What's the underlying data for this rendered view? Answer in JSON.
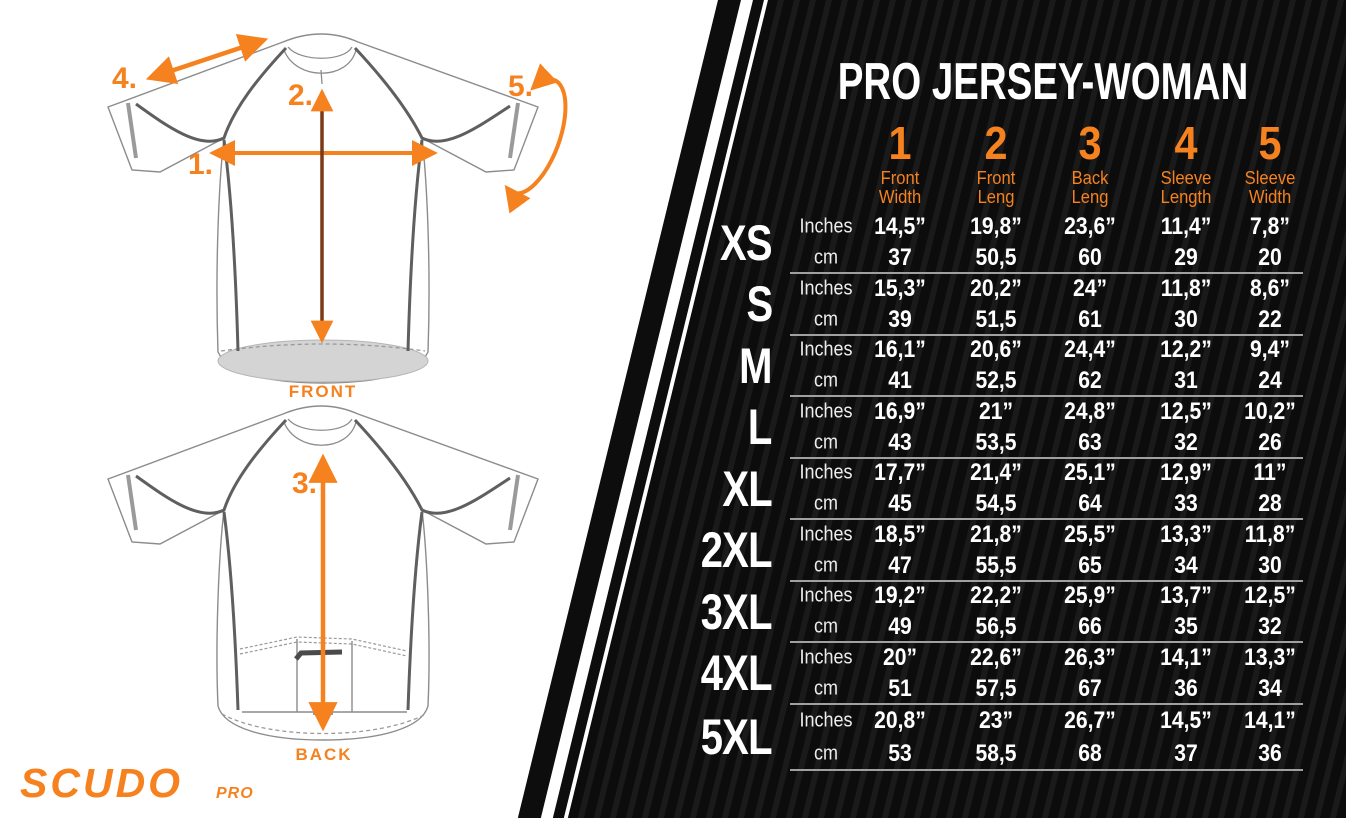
{
  "brand": {
    "name": "SCUDO",
    "sub": "PRO"
  },
  "diagram": {
    "front_caption": "FRONT",
    "back_caption": "BACK",
    "markers": {
      "m1": "1.",
      "m2": "2.",
      "m3": "3.",
      "m4": "4.",
      "m5": "5."
    }
  },
  "colors": {
    "accent_orange": "#F5821F",
    "panel_black": "#0d0d0d",
    "panel_stripe": "#1a1a1a",
    "measure_line_dark": "#7b3917",
    "separator_gray": "#a0a0a0",
    "hem_gray": "#d4d4d4"
  },
  "chart_data": {
    "type": "table",
    "title": "PRO JERSEY-WOMAN",
    "unit_labels": [
      "Inches",
      "cm"
    ],
    "columns": [
      {
        "num": "1",
        "label": [
          "Front",
          "Width"
        ]
      },
      {
        "num": "2",
        "label": [
          "Front",
          "Leng"
        ]
      },
      {
        "num": "3",
        "label": [
          "Back",
          "Leng"
        ]
      },
      {
        "num": "4",
        "label": [
          "Sleeve",
          "Length"
        ]
      },
      {
        "num": "5",
        "label": [
          "Sleeve",
          "Width"
        ]
      }
    ],
    "rows": [
      {
        "size": "XS",
        "inches": [
          "14,5”",
          "19,8”",
          "23,6”",
          "11,4”",
          "7,8”"
        ],
        "cm": [
          "37",
          "50,5",
          "60",
          "29",
          "20"
        ]
      },
      {
        "size": "S",
        "inches": [
          "15,3”",
          "20,2”",
          "24”",
          "11,8”",
          "8,6”"
        ],
        "cm": [
          "39",
          "51,5",
          "61",
          "30",
          "22"
        ]
      },
      {
        "size": "M",
        "inches": [
          "16,1”",
          "20,6”",
          "24,4”",
          "12,2”",
          "9,4”"
        ],
        "cm": [
          "41",
          "52,5",
          "62",
          "31",
          "24"
        ]
      },
      {
        "size": "L",
        "inches": [
          "16,9”",
          "21”",
          "24,8”",
          "12,5”",
          "10,2”"
        ],
        "cm": [
          "43",
          "53,5",
          "63",
          "32",
          "26"
        ]
      },
      {
        "size": "XL",
        "inches": [
          "17,7”",
          "21,4”",
          "25,1”",
          "12,9”",
          "11”"
        ],
        "cm": [
          "45",
          "54,5",
          "64",
          "33",
          "28"
        ]
      },
      {
        "size": "2XL",
        "inches": [
          "18,5”",
          "21,8”",
          "25,5”",
          "13,3”",
          "11,8”"
        ],
        "cm": [
          "47",
          "55,5",
          "65",
          "34",
          "30"
        ]
      },
      {
        "size": "3XL",
        "inches": [
          "19,2”",
          "22,2”",
          "25,9”",
          "13,7”",
          "12,5”"
        ],
        "cm": [
          "49",
          "56,5",
          "66",
          "35",
          "32"
        ]
      },
      {
        "size": "4XL",
        "inches": [
          "20”",
          "22,6”",
          "26,3”",
          "14,1”",
          "13,3”"
        ],
        "cm": [
          "51",
          "57,5",
          "67",
          "36",
          "34"
        ]
      },
      {
        "size": "5XL",
        "inches": [
          "20,8”",
          "23”",
          "26,7”",
          "14,5”",
          "14,1”"
        ],
        "cm": [
          "53",
          "58,5",
          "68",
          "37",
          "36"
        ]
      }
    ]
  }
}
